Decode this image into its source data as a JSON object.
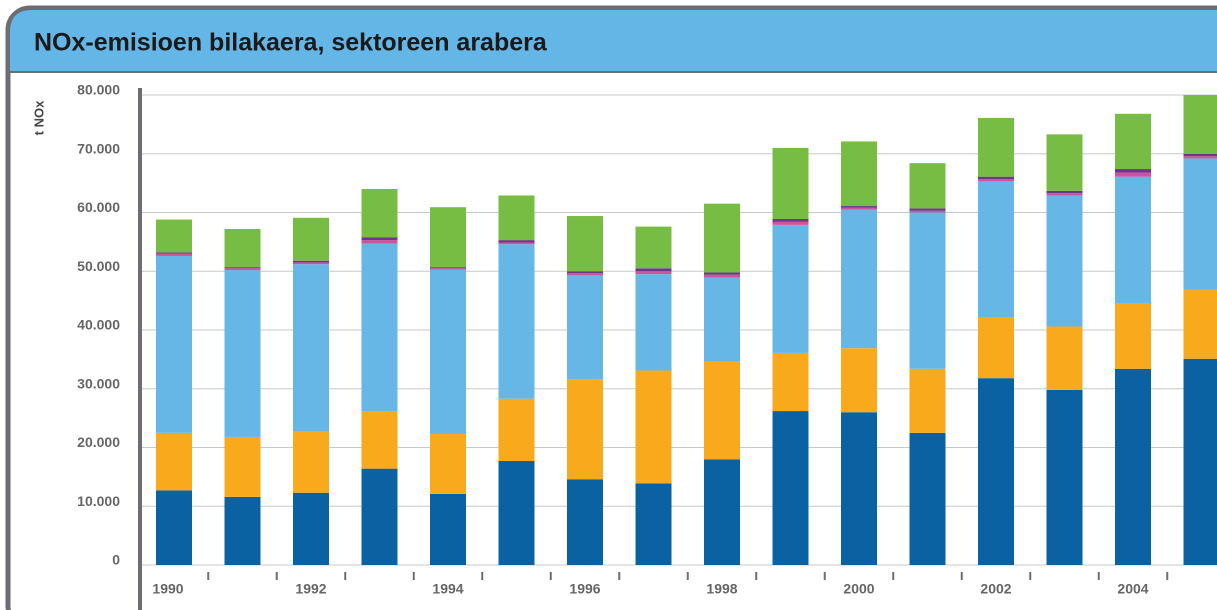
{
  "chart_data": {
    "type": "bar",
    "stacked": true,
    "title": "NOx-emisioen bilakaera, sektoreen arabera",
    "y_label": "t NOx",
    "categories": [
      "1990",
      null,
      "1992",
      null,
      "1994",
      null,
      "1996",
      null,
      "1998",
      null,
      "2000",
      null,
      "2002",
      null,
      "2004",
      null
    ],
    "series": [
      {
        "color": "#0a62a3",
        "values": [
          12700,
          11600,
          12300,
          16400,
          12100,
          17700,
          14600,
          13900,
          18000,
          26200,
          26000,
          22500,
          31800,
          29800,
          33400,
          35100
        ]
      },
      {
        "color": "#f8aa1c",
        "values": [
          9800,
          10200,
          10400,
          9800,
          10200,
          10600,
          17000,
          19200,
          16600,
          9900,
          10900,
          10900,
          10300,
          10800,
          11200,
          11800
        ]
      },
      {
        "color": "#66b7e5",
        "values": [
          30100,
          28400,
          28500,
          28500,
          28000,
          26300,
          17700,
          16400,
          14300,
          21800,
          23600,
          26600,
          23200,
          22300,
          21500,
          22300
        ]
      },
      {
        "color": "#d0539c",
        "values": [
          400,
          300,
          300,
          600,
          200,
          300,
          400,
          500,
          500,
          500,
          300,
          300,
          400,
          400,
          700,
          400
        ]
      },
      {
        "color": "#6a3a8a",
        "values": [
          200,
          200,
          300,
          500,
          200,
          400,
          300,
          500,
          400,
          500,
          300,
          400,
          400,
          400,
          600,
          400
        ]
      },
      {
        "color": "#78bd43",
        "values": [
          5600,
          6500,
          7300,
          8200,
          10200,
          7600,
          9400,
          7100,
          11700,
          12100,
          11000,
          7700,
          10000,
          9600,
          9400,
          10000
        ]
      }
    ],
    "ylim": [
      0,
      80000
    ],
    "yticks": [
      0,
      {
        "value": 10000,
        "label": "10.000"
      },
      {
        "value": 20000,
        "label": "20.000"
      },
      {
        "value": 30000,
        "label": "30.000"
      },
      {
        "value": 40000,
        "label": "40.000"
      },
      {
        "value": 50000,
        "label": "50.000"
      },
      {
        "value": 60000,
        "label": "60.000"
      },
      {
        "value": 70000,
        "label": "70.000"
      },
      {
        "value": 80000,
        "label": "80.000"
      }
    ],
    "grid": true
  }
}
